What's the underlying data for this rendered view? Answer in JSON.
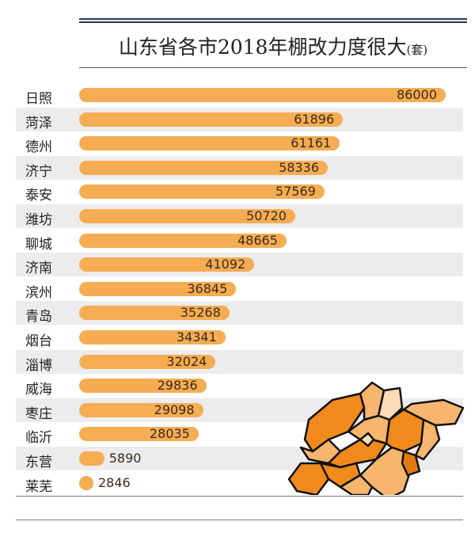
{
  "chart_data": {
    "type": "bar",
    "orientation": "horizontal",
    "title": "山东省各市2018年棚改力度很大",
    "unit": "(套)",
    "categories": [
      "日照",
      "菏泽",
      "德州",
      "济宁",
      "泰安",
      "潍坊",
      "聊城",
      "济南",
      "滨州",
      "青岛",
      "烟台",
      "淄博",
      "威海",
      "枣庄",
      "临沂",
      "东营",
      "莱芜"
    ],
    "values": [
      86000,
      61896,
      61161,
      58336,
      57569,
      50720,
      48665,
      41092,
      36845,
      35268,
      34341,
      32024,
      29836,
      29098,
      28035,
      5890,
      2846
    ],
    "bar_color": "#f5ac52",
    "stripe_color": "#ececee",
    "xlim": [
      0,
      86000
    ]
  },
  "map": {
    "name": "山东省地图",
    "colors": [
      "#f08a1c",
      "#f7b56e",
      "#fbdcb8",
      "#e07a10"
    ]
  }
}
